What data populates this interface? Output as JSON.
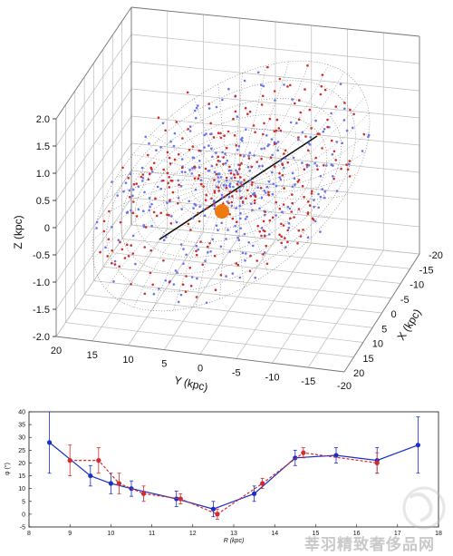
{
  "chart_data": [
    {
      "type": "scatter",
      "title": "",
      "xlabel": "X (kpc)",
      "ylabel": "Y (kpc)",
      "zlabel": "Z (kpc)",
      "xticks": [
        "-20",
        "-15",
        "-10",
        "-5",
        "0",
        "5",
        "10",
        "15",
        "20"
      ],
      "yticks": [
        "20",
        "15",
        "10",
        "5",
        "0",
        "-5",
        "-10",
        "-15",
        "-20"
      ],
      "zticks": [
        "2.0",
        "1.5",
        "1.0",
        "0.5",
        "0",
        "-0.5",
        "-1.0",
        "-1.5",
        "-2.0"
      ],
      "xlim": [
        -20,
        20
      ],
      "ylim": [
        20,
        -20
      ],
      "zlim": [
        -2.0,
        2.0
      ],
      "grid": true,
      "legend": "none",
      "colors": {
        "red_stars": "#d42a2a",
        "blue_stars": "#6b73ee",
        "sun": "#f07a10",
        "warped_disk_mesh": "#666666",
        "axis_line": "#111111"
      },
      "series": [
        {
          "marker": "red dots",
          "note_count": 300
        },
        {
          "marker": "blue dots",
          "note_count": 320
        }
      ]
    },
    {
      "type": "line",
      "title": "",
      "xlabel": "R (kpc)",
      "ylabel": "φ (°)",
      "xlim": [
        8,
        18
      ],
      "ylim": [
        -5,
        40
      ],
      "xticks": [
        "8",
        "9",
        "10",
        "11",
        "12",
        "13",
        "14",
        "15",
        "16",
        "17",
        "18"
      ],
      "yticks": [
        "-5",
        "0",
        "5",
        "10",
        "15",
        "20",
        "25",
        "30",
        "35",
        "40"
      ],
      "grid": false,
      "legend": "none",
      "series": [
        {
          "color": "#1a2fc9",
          "style": "solid",
          "x": [
            8.5,
            9.5,
            10.0,
            10.5,
            11.6,
            12.5,
            13.5,
            14.5,
            15.5,
            16.5,
            17.5
          ],
          "y": [
            28,
            15,
            12,
            10,
            6,
            2,
            8,
            22,
            23,
            21,
            27
          ],
          "err": [
            12,
            4,
            4,
            3,
            3,
            3,
            3,
            3,
            3,
            5,
            11
          ]
        },
        {
          "color": "#d42a2a",
          "style": "dashed",
          "x": [
            9.0,
            9.7,
            10.2,
            10.8,
            11.7,
            12.6,
            13.7,
            14.7,
            16.5
          ],
          "y": [
            21,
            21,
            12,
            8,
            6,
            0,
            12,
            24,
            20
          ],
          "err": [
            6,
            5,
            4,
            3,
            2,
            2,
            2,
            2,
            4
          ]
        }
      ]
    }
  ],
  "watermark": "莘羽精致奢侈品网"
}
